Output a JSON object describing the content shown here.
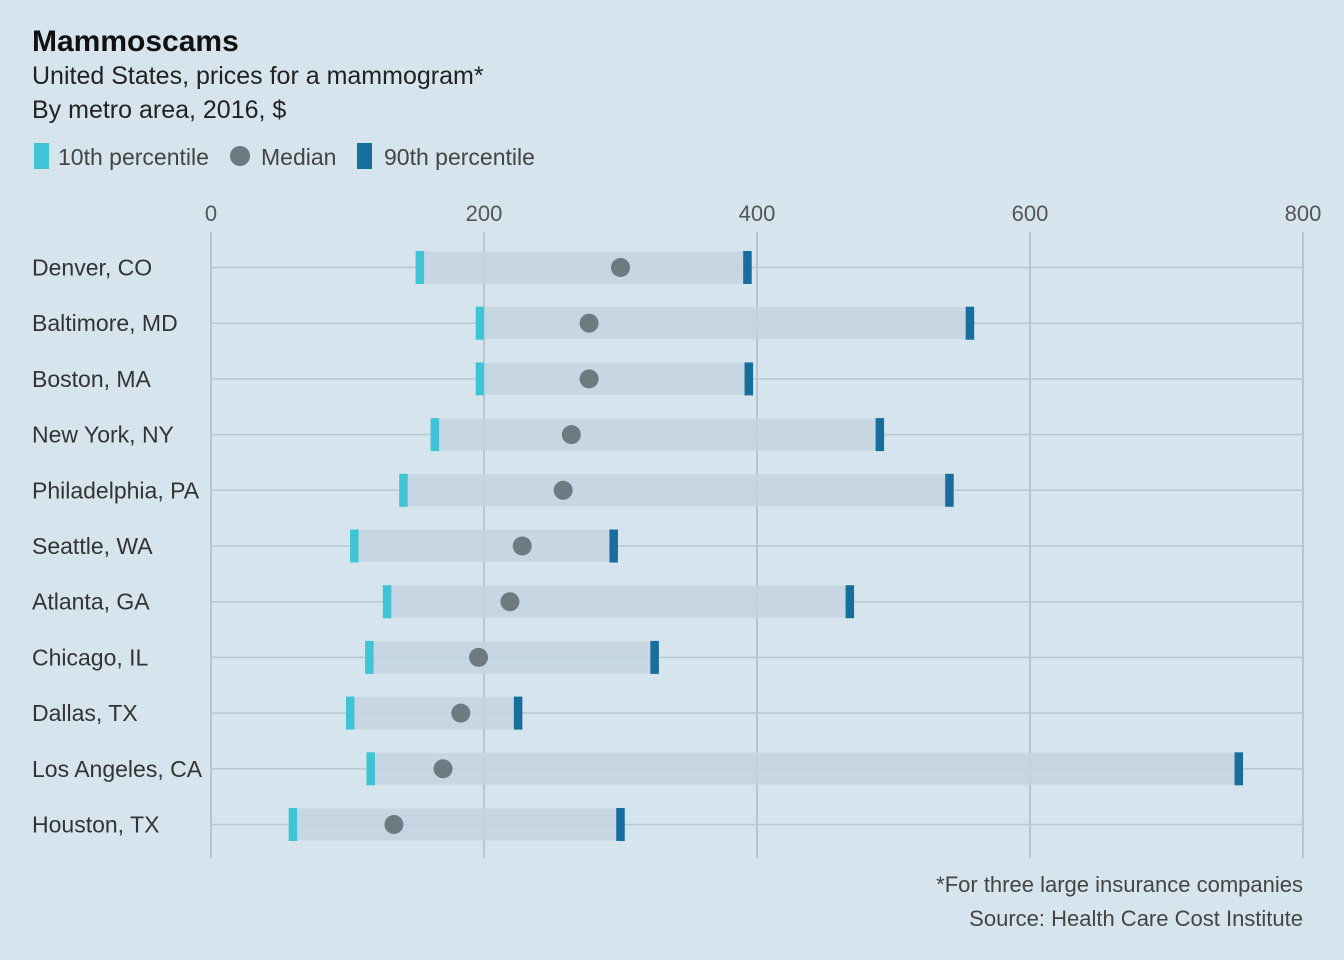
{
  "chart_data": {
    "type": "range-dot",
    "title": "Mammoscams",
    "subtitle_lines": [
      "United States, prices for a mammogram*",
      "By metro area, 2016, $"
    ],
    "legend": [
      {
        "key": "p10",
        "label": "10th percentile",
        "color": "#3ec4d4",
        "shape": "bar"
      },
      {
        "key": "median",
        "label": "Median",
        "color": "#6e7a82",
        "shape": "circle"
      },
      {
        "key": "p90",
        "label": "90th percentile",
        "color": "#176d9c",
        "shape": "bar"
      }
    ],
    "x_ticks": [
      0,
      200,
      400,
      600,
      800
    ],
    "xlim": [
      0,
      800
    ],
    "categories": [
      "Denver, CO",
      "Baltimore, MD",
      "Boston, MA",
      "New York, NY",
      "Philadelphia, PA",
      "Seattle, WA",
      "Atlanta, GA",
      "Chicago, IL",
      "Dallas, TX",
      "Los Angeles, CA",
      "Houston, TX"
    ],
    "series": [
      {
        "name": "10th percentile",
        "values": [
          153,
          197,
          197,
          164,
          141,
          105,
          129,
          116,
          102,
          117,
          60
        ]
      },
      {
        "name": "Median",
        "values": [
          300,
          277,
          277,
          264,
          258,
          228,
          219,
          196,
          183,
          170,
          134
        ]
      },
      {
        "name": "90th percentile",
        "values": [
          393,
          556,
          394,
          490,
          541,
          295,
          468,
          325,
          225,
          753,
          300
        ]
      }
    ],
    "footnotes": [
      "*For three large insurance companies",
      "Source: Health Care Cost Institute"
    ],
    "colors": {
      "background": "#d6e4ed",
      "range_bar": "#c3d5e0",
      "grid": "#b7c7d2"
    }
  }
}
